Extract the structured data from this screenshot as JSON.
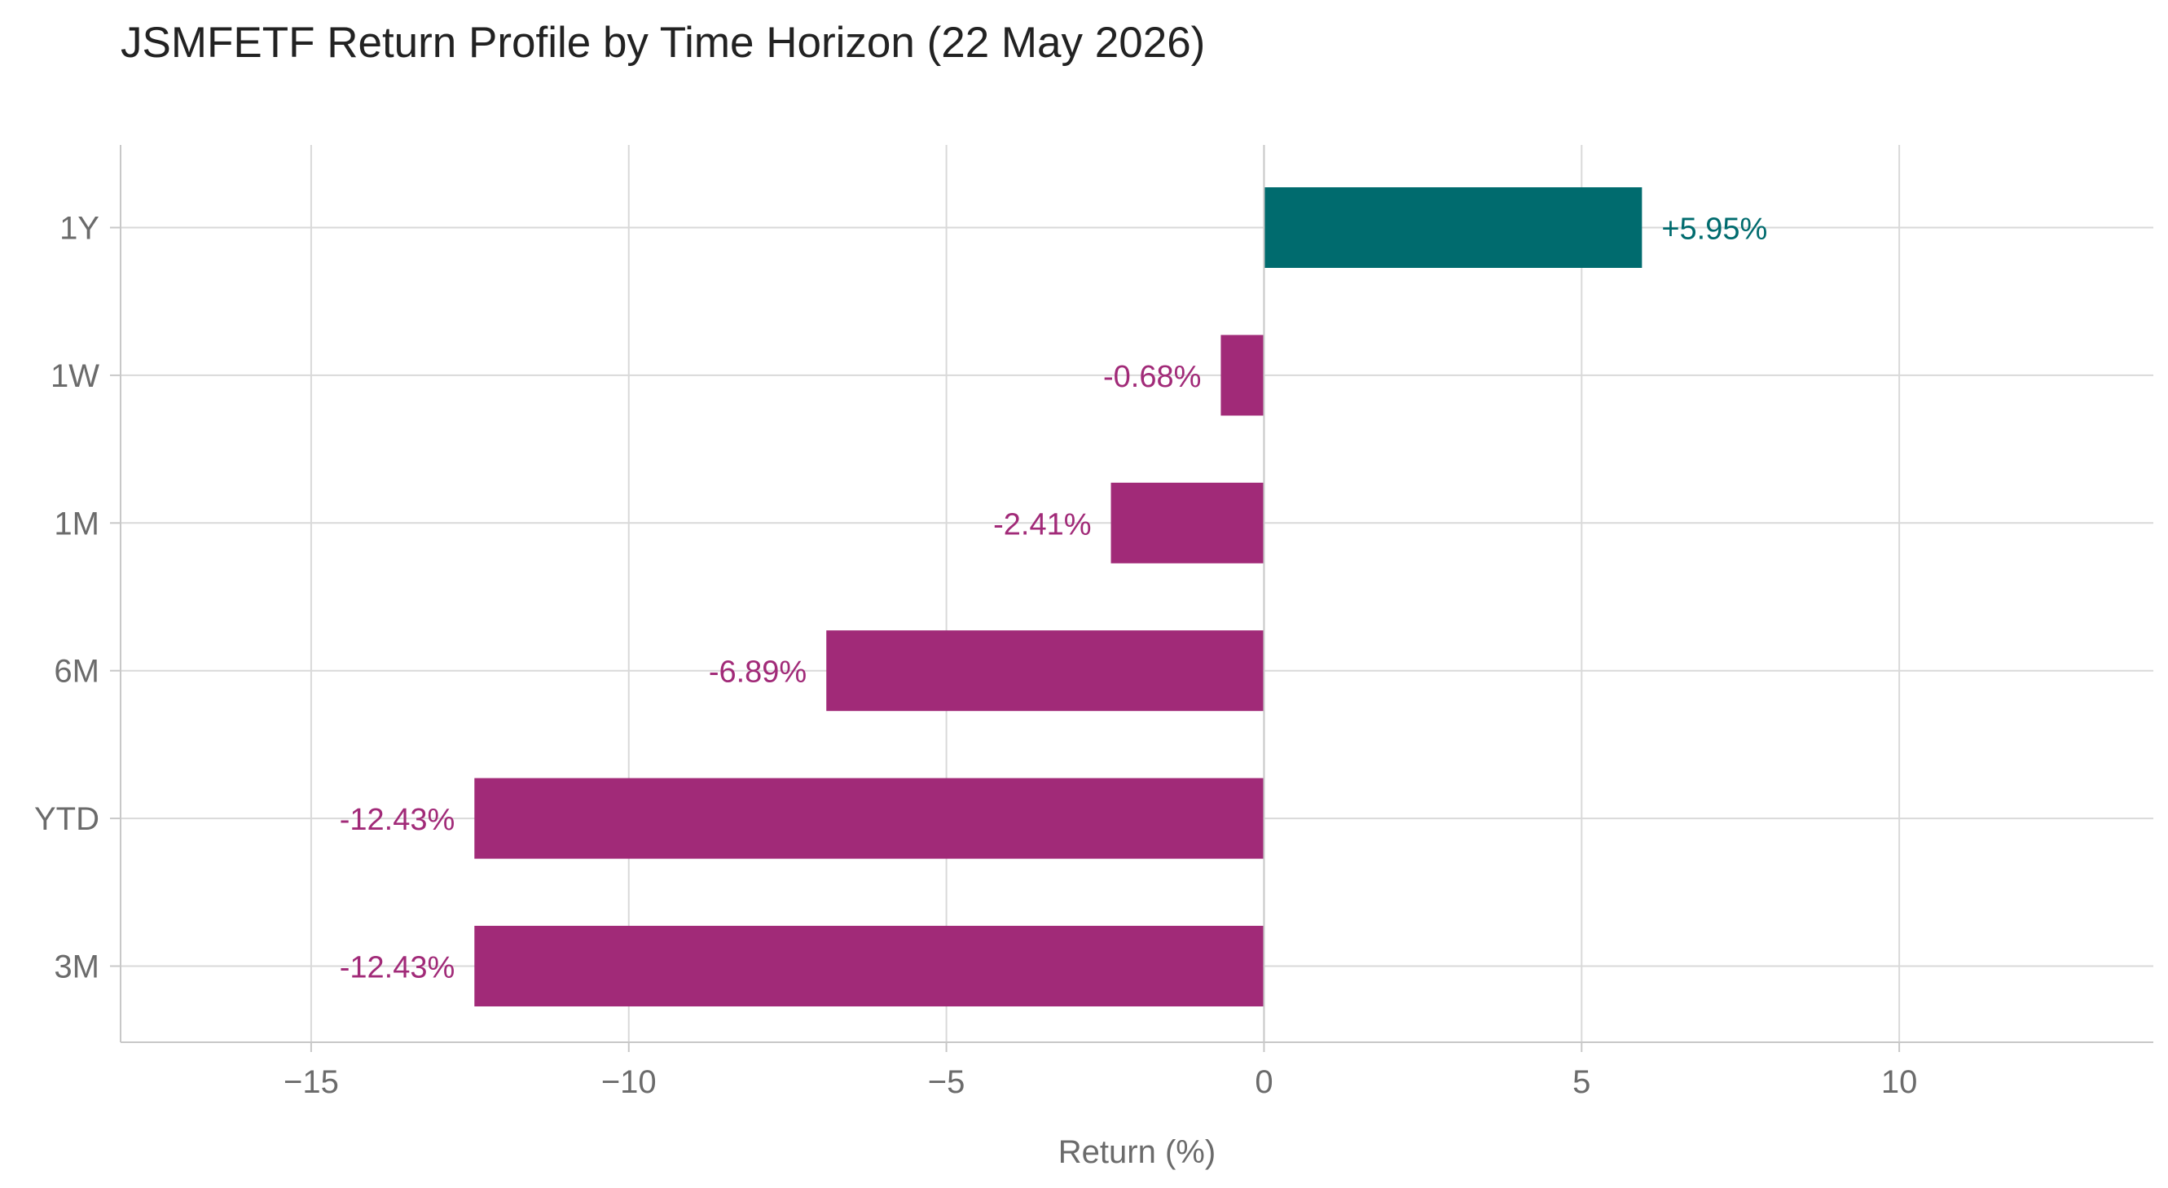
{
  "chart_data": {
    "type": "bar",
    "orientation": "horizontal",
    "title": "JSMFETF Return Profile by Time Horizon (22 May 2026)",
    "xlabel": "Return (%)",
    "ylabel": "",
    "categories": [
      "1Y",
      "1W",
      "1M",
      "6M",
      "YTD",
      "3M"
    ],
    "values": [
      5.95,
      -0.68,
      -2.41,
      -6.89,
      -12.43,
      -12.43
    ],
    "data_labels": [
      "+5.95%",
      "-0.68%",
      "-2.41%",
      "-6.89%",
      "-12.43%",
      "-12.43%"
    ],
    "xlim": [
      -18,
      14
    ],
    "xticks": [
      -15,
      -10,
      -5,
      0,
      5,
      10
    ],
    "xtick_labels": [
      "−15",
      "−10",
      "−5",
      "0",
      "5",
      "10"
    ],
    "grid": true,
    "legend": "none",
    "colors": {
      "positive": "#006b6e",
      "negative": "#a12a78",
      "grid": "#d9d9d9",
      "axis": "#c8c8c8",
      "tick_text": "#6b6b6b",
      "title_text": "#222222"
    }
  }
}
